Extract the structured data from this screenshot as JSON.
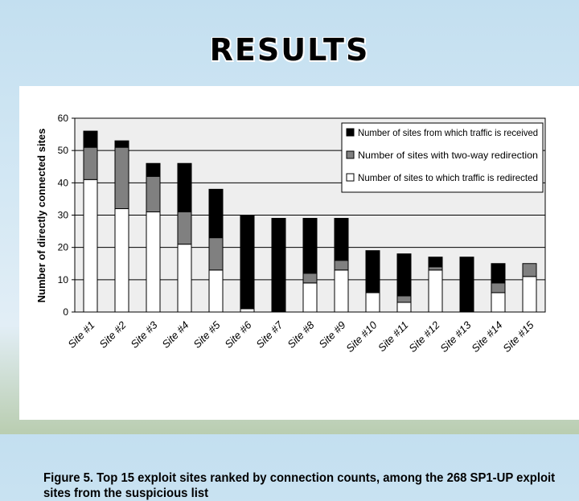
{
  "slide": {
    "title": "RESULTS"
  },
  "figure": {
    "caption": "Figure 5. Top 15 exploit sites ranked by connection counts, among the 268 SP1-UP exploit sites from the suspicious list"
  },
  "chart_data": {
    "type": "bar",
    "stacked": true,
    "title": "",
    "xlabel": "",
    "ylabel": "Number of directly connected sites",
    "ylim": [
      0,
      60
    ],
    "yticks": [
      0,
      10,
      20,
      30,
      40,
      50,
      60
    ],
    "grid": true,
    "legend_position": "top-right",
    "categories": [
      "Site #1",
      "Site #2",
      "Site #3",
      "Site #4",
      "Site #5",
      "Site #6",
      "Site #7",
      "Site #8",
      "Site #9",
      "Site #10",
      "Site #11",
      "Site #12",
      "Site #13",
      "Site #14",
      "Site #15"
    ],
    "series": [
      {
        "name": "Number of sites to which traffic is redirected",
        "color": "#ffffff",
        "values": [
          41,
          32,
          31,
          21,
          13,
          1,
          0,
          9,
          13,
          6,
          3,
          13,
          0,
          6,
          11
        ]
      },
      {
        "name": "Number of sites with two-way redirection",
        "color": "#808080",
        "values": [
          10,
          19,
          11,
          10,
          10,
          0,
          0,
          3,
          3,
          0,
          2,
          1,
          0,
          3,
          4
        ]
      },
      {
        "name": "Number of sites from which traffic is received",
        "color": "#000000",
        "values": [
          5,
          2,
          4,
          15,
          15,
          29,
          29,
          17,
          13,
          13,
          13,
          3,
          17,
          6,
          0
        ]
      }
    ]
  }
}
